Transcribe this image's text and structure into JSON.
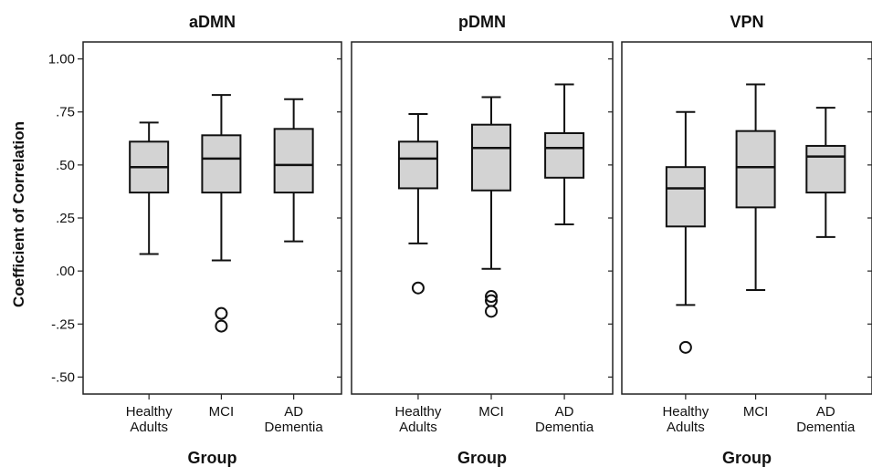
{
  "chart_data": {
    "type": "boxplot",
    "ylabel": "Coefficient of Correlation",
    "ylim": [
      -0.58,
      1.08
    ],
    "yticks": [
      1.0,
      0.75,
      0.5,
      0.25,
      0.0,
      -0.25,
      -0.5
    ],
    "ytick_labels": [
      "1.00",
      ".75",
      ".50",
      ".25",
      ".00",
      "-.25",
      "-.50"
    ],
    "categories": [
      [
        "Healthy",
        "Adults"
      ],
      [
        "MCI"
      ],
      [
        "AD",
        "Dementia"
      ]
    ],
    "panels": [
      {
        "title": "aDMN",
        "xlabel": "Group",
        "boxes": [
          {
            "whisker_low": 0.08,
            "q1": 0.37,
            "median": 0.49,
            "q3": 0.61,
            "whisker_high": 0.7,
            "outliers": []
          },
          {
            "whisker_low": 0.05,
            "q1": 0.37,
            "median": 0.53,
            "q3": 0.64,
            "whisker_high": 0.83,
            "outliers": [
              -0.2,
              -0.26
            ]
          },
          {
            "whisker_low": 0.14,
            "q1": 0.37,
            "median": 0.5,
            "q3": 0.67,
            "whisker_high": 0.81,
            "outliers": []
          }
        ]
      },
      {
        "title": "pDMN",
        "xlabel": "Group",
        "boxes": [
          {
            "whisker_low": 0.13,
            "q1": 0.39,
            "median": 0.53,
            "q3": 0.61,
            "whisker_high": 0.74,
            "outliers": [
              -0.08
            ]
          },
          {
            "whisker_low": 0.01,
            "q1": 0.38,
            "median": 0.58,
            "q3": 0.69,
            "whisker_high": 0.82,
            "outliers": [
              -0.12,
              -0.14,
              -0.19
            ]
          },
          {
            "whisker_low": 0.22,
            "q1": 0.44,
            "median": 0.58,
            "q3": 0.65,
            "whisker_high": 0.88,
            "outliers": []
          }
        ]
      },
      {
        "title": "VPN",
        "xlabel": "Group",
        "boxes": [
          {
            "whisker_low": -0.16,
            "q1": 0.21,
            "median": 0.39,
            "q3": 0.49,
            "whisker_high": 0.75,
            "outliers": [
              -0.36
            ]
          },
          {
            "whisker_low": -0.09,
            "q1": 0.3,
            "median": 0.49,
            "q3": 0.66,
            "whisker_high": 0.88,
            "outliers": []
          },
          {
            "whisker_low": 0.16,
            "q1": 0.37,
            "median": 0.54,
            "q3": 0.59,
            "whisker_high": 0.77,
            "outliers": []
          }
        ]
      }
    ],
    "colors": {
      "box_fill": "#d3d3d3",
      "stroke": "#111111"
    }
  }
}
